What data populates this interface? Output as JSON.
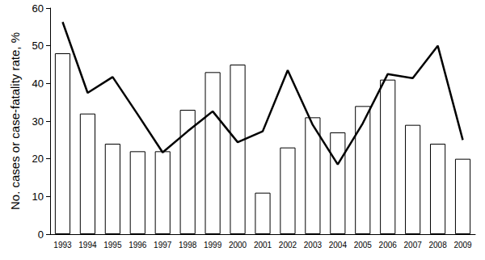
{
  "chart_data": {
    "type": "bar",
    "y_label": "No. cases or case-fatality rate, %",
    "categories": [
      "1993",
      "1994",
      "1995",
      "1996",
      "1997",
      "1998",
      "1999",
      "2000",
      "2001",
      "2002",
      "2003",
      "2004",
      "2005",
      "2006",
      "2007",
      "2008",
      "2009"
    ],
    "series": [
      {
        "type": "bar",
        "color": "#ffffff",
        "values": [
          48,
          32,
          24,
          22,
          22,
          33,
          43,
          45,
          11,
          23,
          31,
          27,
          34,
          41,
          29,
          24,
          20
        ]
      },
      {
        "type": "line",
        "color": "#000000",
        "marker": "none",
        "line_style": "solid",
        "values": [
          56.3,
          37.5,
          41.7,
          31.8,
          21.7,
          27.3,
          32.6,
          24.4,
          27.3,
          43.5,
          29.0,
          18.5,
          29.4,
          42.5,
          41.4,
          50.0,
          25.0
        ]
      }
    ],
    "ylim": [
      0,
      60
    ],
    "yticks": [
      0,
      10,
      20,
      30,
      40,
      50,
      60
    ],
    "grid": false
  }
}
